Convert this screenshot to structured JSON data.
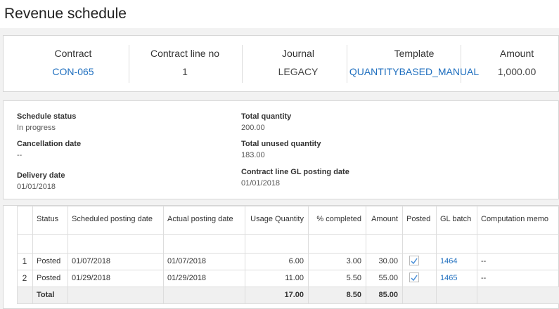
{
  "header": {
    "title": "Revenue schedule"
  },
  "summary": {
    "fields": [
      {
        "label": "Contract",
        "value": "CON-065"
      },
      {
        "label": "Contract line no",
        "value": "1"
      },
      {
        "label": "Journal",
        "value": "LEGACY"
      },
      {
        "label": "Template",
        "value": "QUANTITYBASED_MANUAL"
      },
      {
        "label": "Amount",
        "value": "1,000.00"
      }
    ]
  },
  "details": {
    "fields": [
      {
        "label": "Schedule status",
        "value": "In progress"
      },
      {
        "label": "Cancellation date",
        "value": "--"
      },
      {
        "label": "Delivery date",
        "value": "01/01/2018"
      },
      {
        "label": "Total quantity",
        "value": "200.00"
      },
      {
        "label": "Total unused quantity",
        "value": "183.00"
      },
      {
        "label": "Contract line GL posting date",
        "value": "01/01/2018"
      }
    ]
  },
  "table": {
    "columns": [
      "Status",
      "Scheduled posting date",
      "Actual posting date",
      "Usage Quantity",
      "% completed",
      "Amount",
      "Posted",
      "GL batch",
      "Computation memo"
    ],
    "rows": [
      {
        "number": "1",
        "cells": [
          "Posted",
          "01/07/2018",
          "01/07/2018",
          "6.00",
          "3.00",
          "30.00",
          null,
          "1464",
          "--"
        ]
      },
      {
        "number": "2",
        "cells": [
          "Posted",
          "01/29/2018",
          "01/29/2018",
          "11.00",
          "5.50",
          "55.00",
          null,
          "1465",
          "--"
        ]
      }
    ],
    "total": {
      "cells": [
        "Total",
        null,
        null,
        "17.00",
        "8.50",
        "85.00",
        null,
        null,
        null
      ]
    }
  }
}
